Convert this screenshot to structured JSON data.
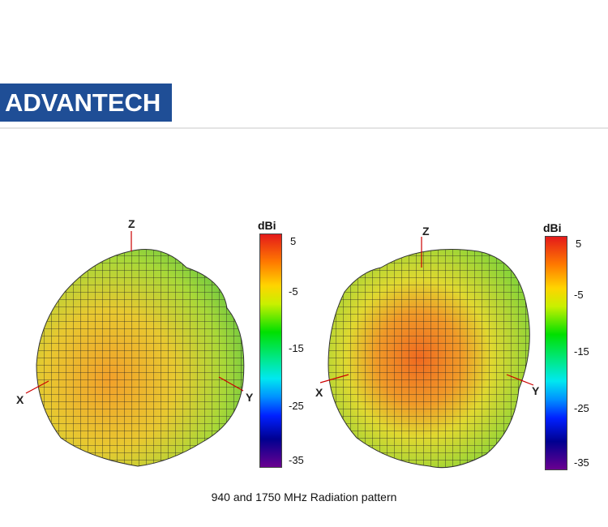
{
  "logo": {
    "text": "ADVANTECH",
    "color": "#1f4e96"
  },
  "figures": [
    {
      "axes": {
        "z": "Z",
        "x": "X",
        "y": "Y"
      },
      "colorbar": {
        "unit": "dBi",
        "ticks": [
          "5",
          "-5",
          "-15",
          "-25",
          "-35"
        ]
      }
    },
    {
      "axes": {
        "z": "Z",
        "x": "X",
        "y": "Y"
      },
      "colorbar": {
        "unit": "dBi",
        "ticks": [
          "5",
          "-5",
          "-15",
          "-25",
          "-35"
        ]
      }
    }
  ],
  "caption": "940 and 1750 MHz Radiation pattern"
}
